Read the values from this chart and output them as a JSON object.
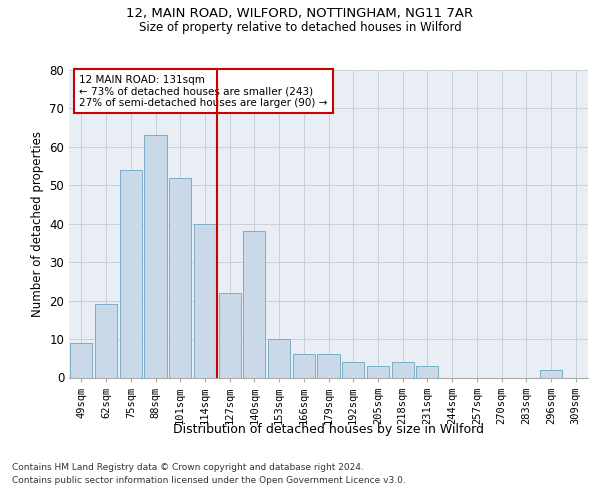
{
  "title1": "12, MAIN ROAD, WILFORD, NOTTINGHAM, NG11 7AR",
  "title2": "Size of property relative to detached houses in Wilford",
  "xlabel": "Distribution of detached houses by size in Wilford",
  "ylabel": "Number of detached properties",
  "categories": [
    "49sqm",
    "62sqm",
    "75sqm",
    "88sqm",
    "101sqm",
    "114sqm",
    "127sqm",
    "140sqm",
    "153sqm",
    "166sqm",
    "179sqm",
    "192sqm",
    "205sqm",
    "218sqm",
    "231sqm",
    "244sqm",
    "257sqm",
    "270sqm",
    "283sqm",
    "296sqm",
    "309sqm"
  ],
  "values": [
    9,
    19,
    54,
    63,
    52,
    40,
    22,
    38,
    10,
    6,
    6,
    4,
    3,
    4,
    3,
    0,
    0,
    0,
    0,
    2,
    0
  ],
  "bar_color": "#c9d9e8",
  "bar_edge_color": "#7aaec8",
  "vline_color": "#cc0000",
  "annotation_text": "12 MAIN ROAD: 131sqm\n← 73% of detached houses are smaller (243)\n27% of semi-detached houses are larger (90) →",
  "annotation_box_color": "#ffffff",
  "annotation_box_edge": "#cc0000",
  "ylim": [
    0,
    80
  ],
  "yticks": [
    0,
    10,
    20,
    30,
    40,
    50,
    60,
    70,
    80
  ],
  "grid_color": "#c8d0d8",
  "bg_color": "#e8eef4",
  "footer1": "Contains HM Land Registry data © Crown copyright and database right 2024.",
  "footer2": "Contains public sector information licensed under the Open Government Licence v3.0."
}
